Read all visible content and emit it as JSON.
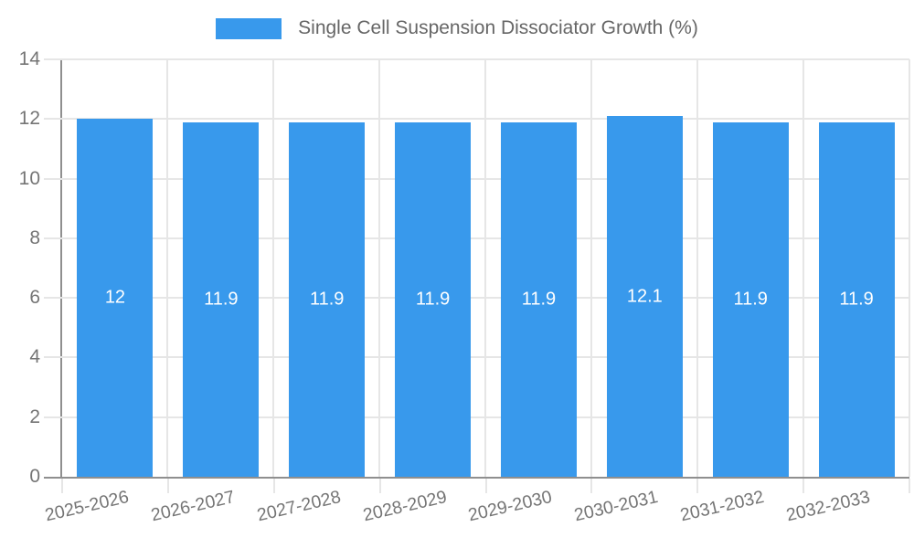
{
  "chart_data": {
    "type": "bar",
    "title": "Single Cell Suspension Dissociator Growth (%)",
    "categories": [
      "2025-2026",
      "2026-2027",
      "2027-2028",
      "2028-2029",
      "2029-2030",
      "2030-2031",
      "2031-2032",
      "2032-2033"
    ],
    "values": [
      12,
      11.9,
      11.9,
      11.9,
      11.9,
      12.1,
      11.9,
      11.9
    ],
    "bar_labels": [
      "12",
      "11.9",
      "11.9",
      "11.9",
      "11.9",
      "12.1",
      "11.9",
      "11.9"
    ],
    "xlabel": "",
    "ylabel": "",
    "ylim": [
      0,
      14
    ],
    "yticks": [
      0,
      2,
      4,
      6,
      8,
      10,
      12,
      14
    ],
    "grid": true,
    "legend_position": "top",
    "colors": {
      "bar": "#3899EC",
      "bar_label": "#FFFFFF",
      "grid": "#E6E6E6",
      "axis": "#8F8F8F",
      "tick_text": "#757575",
      "legend_text": "#666666",
      "background": "#FFFFFF"
    }
  }
}
